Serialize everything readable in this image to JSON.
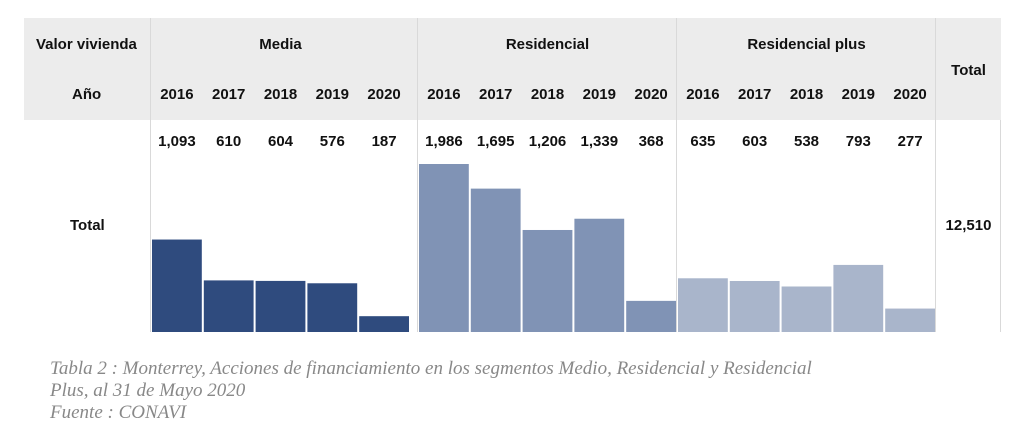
{
  "table": {
    "row_label_value": "Valor vivienda",
    "row_label_year": "Año",
    "row_label_total": "Total",
    "total_column_header": "Total",
    "grand_total": "12,510"
  },
  "chart_data": {
    "type": "bar",
    "groups": [
      "Media",
      "Residencial",
      "Residencial plus"
    ],
    "categories": [
      "2016",
      "2017",
      "2018",
      "2019",
      "2020"
    ],
    "series": [
      {
        "name": "Media",
        "values": [
          1093,
          610,
          604,
          576,
          187
        ],
        "labels": [
          "1,093",
          "610",
          "604",
          "576",
          "187"
        ],
        "color": "#2f4b7e"
      },
      {
        "name": "Residencial",
        "values": [
          1986,
          1695,
          1206,
          1339,
          368
        ],
        "labels": [
          "1,986",
          "1,695",
          "1,206",
          "1,339",
          "368"
        ],
        "color": "#8093b5"
      },
      {
        "name": "Residencial plus",
        "values": [
          635,
          603,
          538,
          793,
          277
        ],
        "labels": [
          "635",
          "603",
          "538",
          "793",
          "277"
        ],
        "color": "#a9b5cb"
      }
    ],
    "total": 12510
  },
  "caption": {
    "line1": "Tabla 2 : Monterrey, Acciones de financiamiento en los segmentos Medio, Residencial y Residencial",
    "line2": "Plus, al 31 de Mayo 2020",
    "line3": "Fuente : CONAVI"
  }
}
